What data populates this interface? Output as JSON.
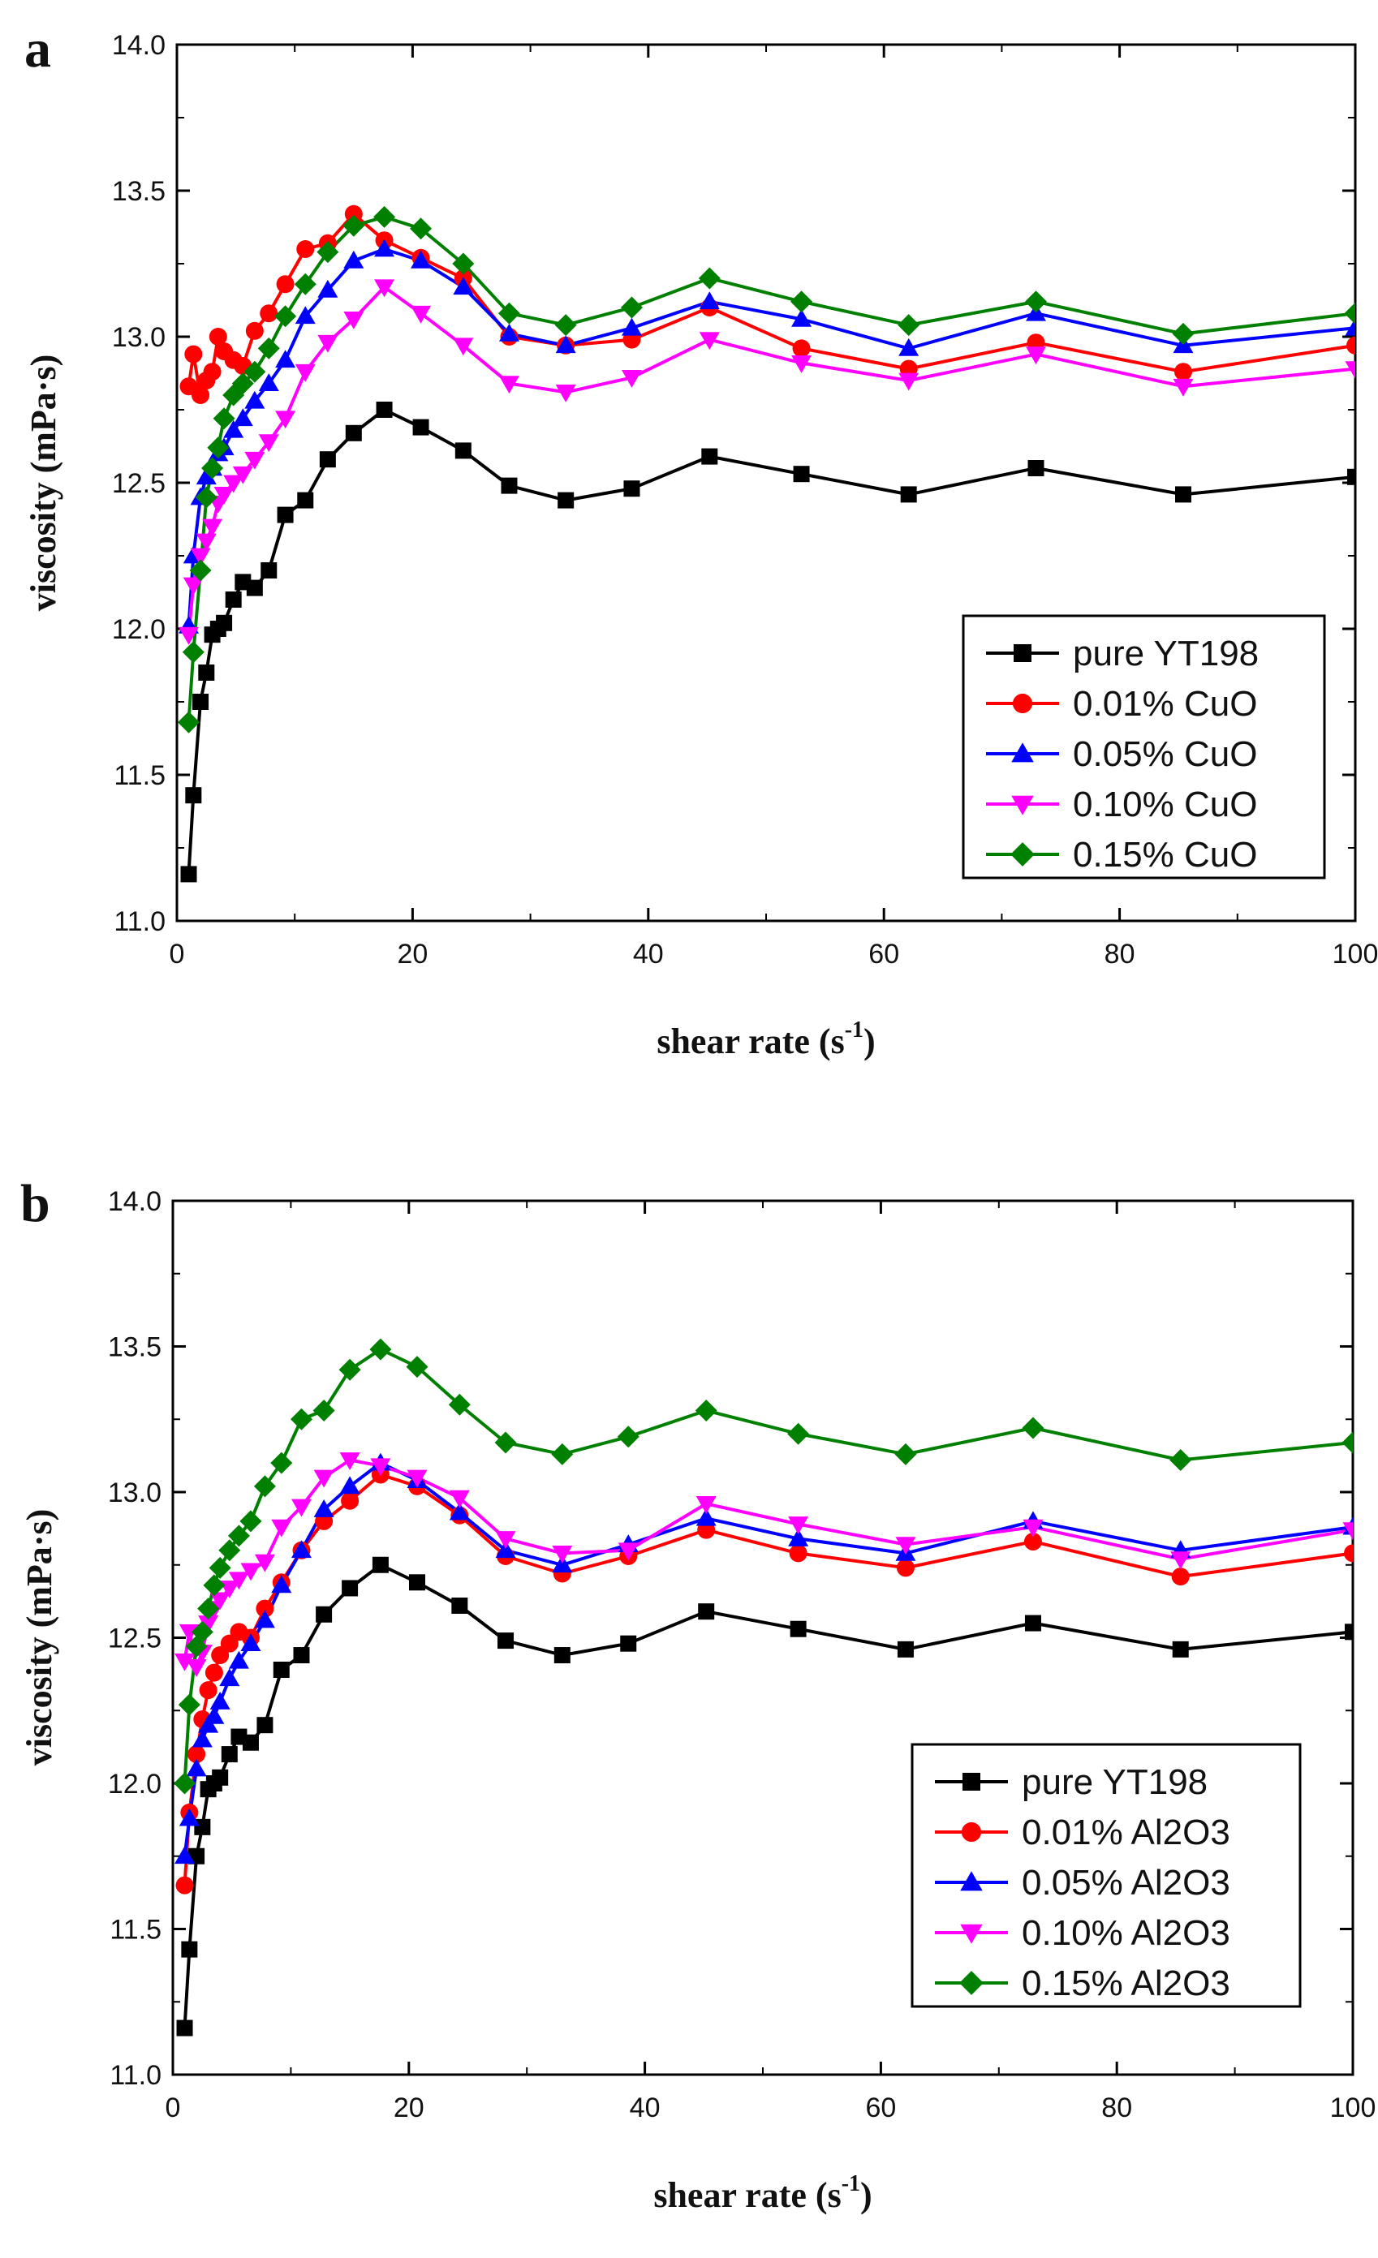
{
  "chart_data": [
    {
      "type": "line",
      "panel_label": "a",
      "xlabel": "shear rate",
      "xlabel_unit_base": "s",
      "xlabel_unit_exp": "-1",
      "ylabel": "viscosity (mPa·s)",
      "xlim": [
        0,
        100
      ],
      "ylim": [
        11.0,
        14.0
      ],
      "xticks": [
        0,
        20,
        40,
        60,
        80,
        100
      ],
      "yticks": [
        "11.0",
        "11.5",
        "12.0",
        "12.5",
        "13.0",
        "13.5",
        "14.0"
      ],
      "legend_position": "lower-right",
      "series": [
        {
          "name": "pure YT198",
          "color": "#000000",
          "marker": "square",
          "x": [
            1.0,
            1.4,
            2.0,
            2.5,
            3.0,
            3.5,
            4.0,
            4.8,
            5.6,
            6.6,
            7.8,
            9.2,
            10.9,
            12.8,
            15.0,
            17.6,
            20.7,
            24.3,
            28.2,
            33.0,
            38.6,
            45.2,
            53.0,
            62.1,
            72.9,
            85.4,
            100.0
          ],
          "y": [
            11.16,
            11.43,
            11.75,
            11.85,
            11.98,
            12.0,
            12.02,
            12.1,
            12.16,
            12.14,
            12.2,
            12.39,
            12.44,
            12.58,
            12.67,
            12.75,
            12.69,
            12.61,
            12.49,
            12.44,
            12.48,
            12.59,
            12.53,
            12.46,
            12.55,
            12.46,
            12.52
          ]
        },
        {
          "name": "0.01% CuO",
          "color": "#ff0000",
          "marker": "circle",
          "x": [
            1.0,
            1.4,
            2.0,
            2.5,
            3.0,
            3.5,
            4.0,
            4.8,
            5.6,
            6.6,
            7.8,
            9.2,
            10.9,
            12.8,
            15.0,
            17.6,
            20.7,
            24.3,
            28.2,
            33.0,
            38.6,
            45.2,
            53.0,
            62.1,
            72.9,
            85.4,
            100.0
          ],
          "y": [
            12.83,
            12.94,
            12.8,
            12.85,
            12.88,
            13.0,
            12.95,
            12.92,
            12.9,
            13.02,
            13.08,
            13.18,
            13.3,
            13.32,
            13.42,
            13.33,
            13.27,
            13.2,
            13.0,
            12.97,
            12.99,
            13.1,
            12.96,
            12.89,
            12.98,
            12.88,
            12.97
          ]
        },
        {
          "name": "0.05% CuO",
          "color": "#0000ff",
          "marker": "triangle-up",
          "x": [
            1.0,
            1.4,
            2.0,
            2.5,
            3.0,
            3.5,
            4.0,
            4.8,
            5.6,
            6.6,
            7.8,
            9.2,
            10.9,
            12.8,
            15.0,
            17.6,
            20.7,
            24.3,
            28.2,
            33.0,
            38.6,
            45.2,
            53.0,
            62.1,
            72.9,
            85.4,
            100.0
          ],
          "y": [
            12.01,
            12.25,
            12.45,
            12.52,
            12.55,
            12.6,
            12.62,
            12.68,
            12.72,
            12.78,
            12.84,
            12.92,
            13.07,
            13.16,
            13.26,
            13.3,
            13.26,
            13.17,
            13.01,
            12.97,
            13.03,
            13.12,
            13.06,
            12.96,
            13.08,
            12.97,
            13.03
          ]
        },
        {
          "name": "0.10% CuO",
          "color": "#ff00ff",
          "marker": "triangle-down",
          "x": [
            1.0,
            1.4,
            2.0,
            2.5,
            3.0,
            3.5,
            4.0,
            4.8,
            5.6,
            6.6,
            7.8,
            9.2,
            10.9,
            12.8,
            15.0,
            17.6,
            20.7,
            24.3,
            28.2,
            33.0,
            38.6,
            45.2,
            53.0,
            62.1,
            72.9,
            85.4,
            100.0
          ],
          "y": [
            11.98,
            12.15,
            12.25,
            12.3,
            12.35,
            12.43,
            12.46,
            12.5,
            12.53,
            12.58,
            12.64,
            12.72,
            12.88,
            12.98,
            13.06,
            13.17,
            13.08,
            12.97,
            12.84,
            12.81,
            12.86,
            12.99,
            12.91,
            12.85,
            12.94,
            12.83,
            12.89
          ]
        },
        {
          "name": "0.15% CuO",
          "color": "#008000",
          "marker": "diamond",
          "x": [
            1.0,
            1.4,
            2.0,
            2.5,
            3.0,
            3.5,
            4.0,
            4.8,
            5.6,
            6.6,
            7.8,
            9.2,
            10.9,
            12.8,
            15.0,
            17.6,
            20.7,
            24.3,
            28.2,
            33.0,
            38.6,
            45.2,
            53.0,
            62.1,
            72.9,
            85.4,
            100.0
          ],
          "y": [
            11.68,
            11.92,
            12.2,
            12.45,
            12.55,
            12.62,
            12.72,
            12.8,
            12.84,
            12.88,
            12.96,
            13.07,
            13.18,
            13.29,
            13.38,
            13.41,
            13.37,
            13.25,
            13.08,
            13.04,
            13.1,
            13.2,
            13.12,
            13.04,
            13.12,
            13.01,
            13.08
          ]
        }
      ]
    },
    {
      "type": "line",
      "panel_label": "b",
      "xlabel": "shear rate",
      "xlabel_unit_base": "s",
      "xlabel_unit_exp": "-1",
      "ylabel": "viscosity (mPa·s)",
      "xlim": [
        0,
        100
      ],
      "ylim": [
        11.0,
        14.0
      ],
      "xticks": [
        0,
        20,
        40,
        60,
        80,
        100
      ],
      "yticks": [
        "11.0",
        "11.5",
        "12.0",
        "12.5",
        "13.0",
        "13.5",
        "14.0"
      ],
      "legend_position": "lower-right",
      "series": [
        {
          "name": "pure YT198",
          "color": "#000000",
          "marker": "square",
          "x": [
            1.0,
            1.4,
            2.0,
            2.5,
            3.0,
            3.5,
            4.0,
            4.8,
            5.6,
            6.6,
            7.8,
            9.2,
            10.9,
            12.8,
            15.0,
            17.6,
            20.7,
            24.3,
            28.2,
            33.0,
            38.6,
            45.2,
            53.0,
            62.1,
            72.9,
            85.4,
            100.0
          ],
          "y": [
            11.16,
            11.43,
            11.75,
            11.85,
            11.98,
            12.0,
            12.02,
            12.1,
            12.16,
            12.14,
            12.2,
            12.39,
            12.44,
            12.58,
            12.67,
            12.75,
            12.69,
            12.61,
            12.49,
            12.44,
            12.48,
            12.59,
            12.53,
            12.46,
            12.55,
            12.46,
            12.52
          ]
        },
        {
          "name": "0.01% Al2O3",
          "color": "#ff0000",
          "marker": "circle",
          "x": [
            1.0,
            1.4,
            2.0,
            2.5,
            3.0,
            3.5,
            4.0,
            4.8,
            5.6,
            6.6,
            7.8,
            9.2,
            10.9,
            12.8,
            15.0,
            17.6,
            20.7,
            24.3,
            28.2,
            33.0,
            38.6,
            45.2,
            53.0,
            62.1,
            72.9,
            85.4,
            100.0
          ],
          "y": [
            11.65,
            11.9,
            12.1,
            12.22,
            12.32,
            12.38,
            12.44,
            12.48,
            12.52,
            12.5,
            12.6,
            12.69,
            12.8,
            12.9,
            12.97,
            13.06,
            13.02,
            12.92,
            12.78,
            12.72,
            12.78,
            12.87,
            12.79,
            12.74,
            12.83,
            12.71,
            12.79
          ]
        },
        {
          "name": "0.05% Al2O3",
          "color": "#0000ff",
          "marker": "triangle-up",
          "x": [
            1.0,
            1.4,
            2.0,
            2.5,
            3.0,
            3.5,
            4.0,
            4.8,
            5.6,
            6.6,
            7.8,
            9.2,
            10.9,
            12.8,
            15.0,
            17.6,
            20.7,
            24.3,
            28.2,
            33.0,
            38.6,
            45.2,
            53.0,
            62.1,
            72.9,
            85.4,
            100.0
          ],
          "y": [
            11.75,
            11.88,
            12.05,
            12.15,
            12.2,
            12.23,
            12.28,
            12.36,
            12.42,
            12.48,
            12.56,
            12.68,
            12.8,
            12.94,
            13.02,
            13.1,
            13.04,
            12.93,
            12.8,
            12.75,
            12.82,
            12.91,
            12.84,
            12.79,
            12.9,
            12.8,
            12.88
          ]
        },
        {
          "name": "0.10% Al2O3",
          "color": "#ff00ff",
          "marker": "triangle-down",
          "x": [
            1.0,
            1.4,
            2.0,
            2.5,
            3.0,
            3.5,
            4.0,
            4.8,
            5.6,
            6.6,
            7.8,
            9.2,
            10.9,
            12.8,
            15.0,
            17.6,
            20.7,
            24.3,
            28.2,
            33.0,
            38.6,
            45.2,
            53.0,
            62.1,
            72.9,
            85.4,
            100.0
          ],
          "y": [
            12.42,
            12.52,
            12.4,
            12.45,
            12.55,
            12.6,
            12.63,
            12.67,
            12.7,
            12.73,
            12.76,
            12.88,
            12.95,
            13.05,
            13.11,
            13.09,
            13.05,
            12.98,
            12.84,
            12.79,
            12.8,
            12.96,
            12.89,
            12.82,
            12.88,
            12.77,
            12.87
          ]
        },
        {
          "name": "0.15% Al2O3",
          "color": "#008000",
          "marker": "diamond",
          "x": [
            1.0,
            1.4,
            2.0,
            2.5,
            3.0,
            3.5,
            4.0,
            4.8,
            5.6,
            6.6,
            7.8,
            9.2,
            10.9,
            12.8,
            15.0,
            17.6,
            20.7,
            24.3,
            28.2,
            33.0,
            38.6,
            45.2,
            53.0,
            62.1,
            72.9,
            85.4,
            100.0
          ],
          "y": [
            12.0,
            12.27,
            12.47,
            12.52,
            12.6,
            12.68,
            12.74,
            12.8,
            12.85,
            12.9,
            13.02,
            13.1,
            13.25,
            13.28,
            13.42,
            13.49,
            13.43,
            13.3,
            13.17,
            13.13,
            13.19,
            13.28,
            13.2,
            13.13,
            13.22,
            13.11,
            13.17
          ]
        }
      ]
    }
  ]
}
